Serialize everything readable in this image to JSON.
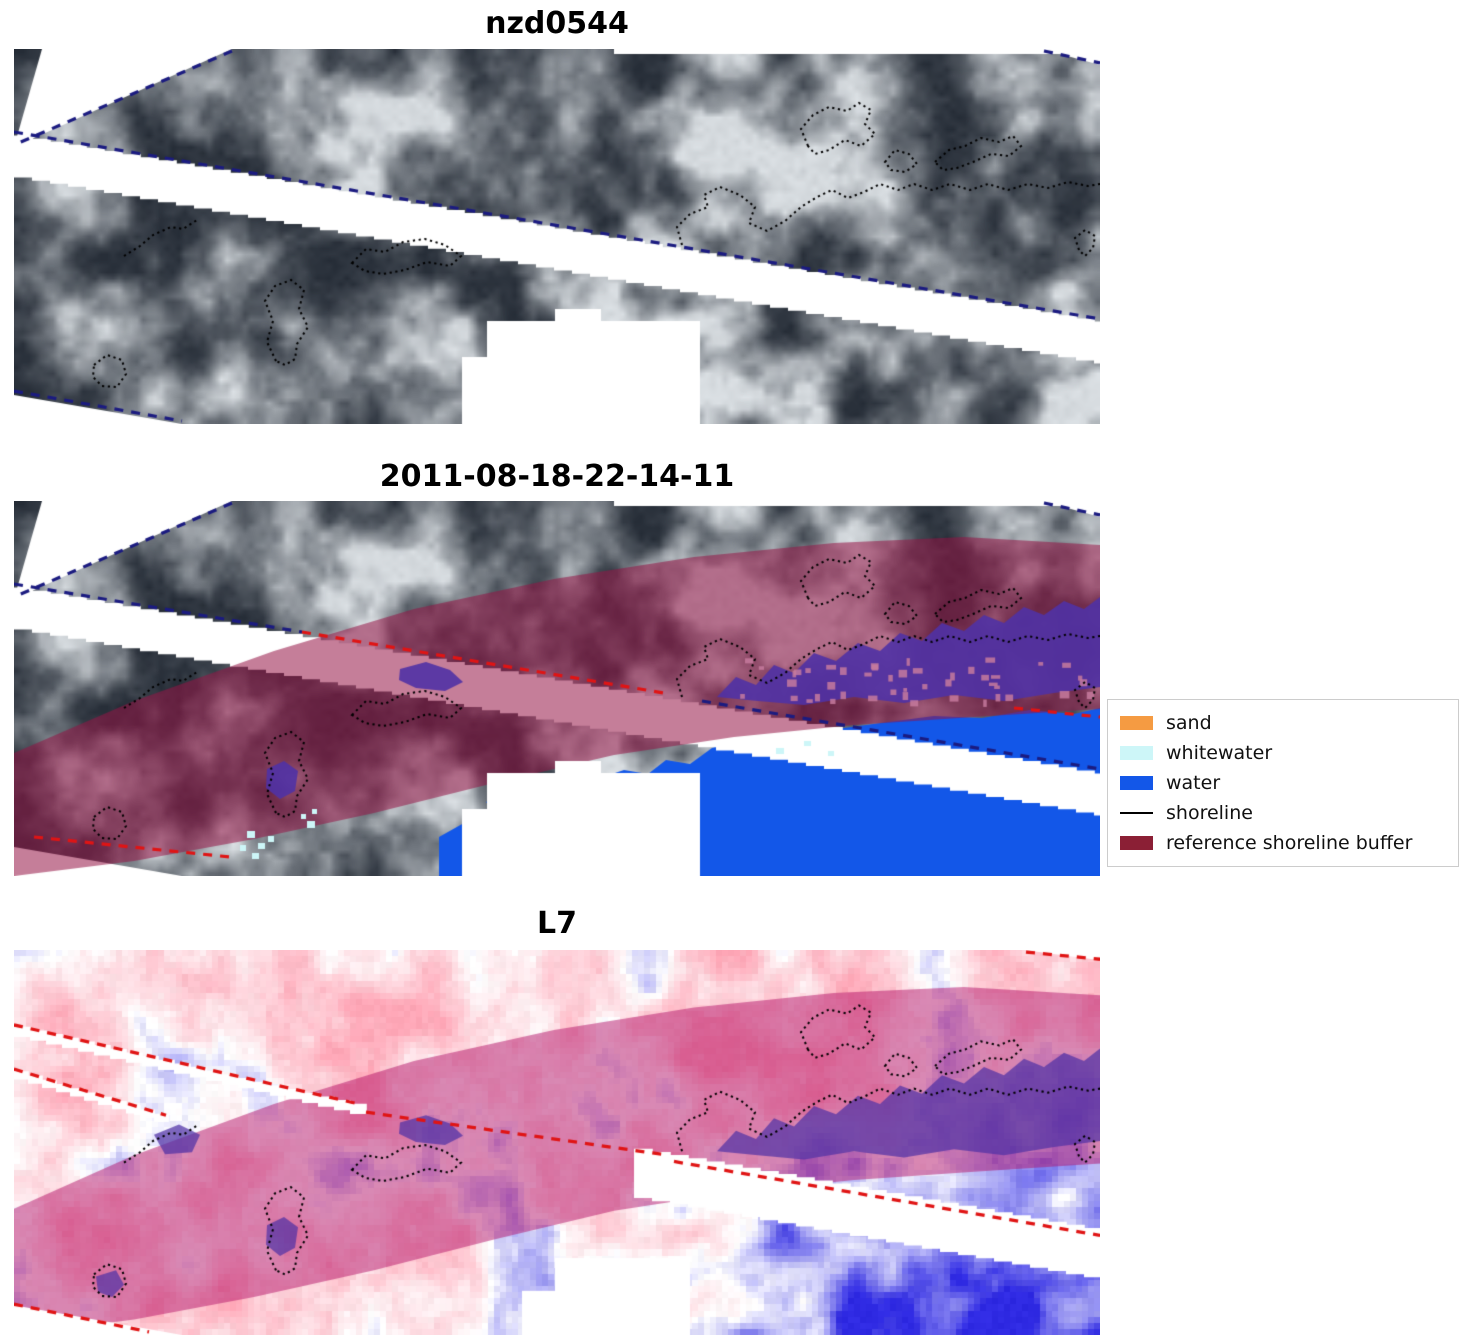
{
  "figure": {
    "panels": [
      {
        "title": "nzd0544",
        "kind": "rgb-satellite-image"
      },
      {
        "title": "2011-08-18-22-14-11",
        "kind": "rgb-satellite-image-with-classification-overlay"
      },
      {
        "title": "L7",
        "kind": "index-image-with-classification-overlay"
      }
    ],
    "legend": {
      "items": [
        {
          "label": "sand",
          "type": "patch",
          "color": "#f59b42"
        },
        {
          "label": "whitewater",
          "type": "patch",
          "color": "#cdf6f8"
        },
        {
          "label": "water",
          "type": "patch",
          "color": "#1357e8"
        },
        {
          "label": "shoreline",
          "type": "line",
          "color": "#000000"
        },
        {
          "label": "reference shoreline buffer",
          "type": "patch",
          "color": "#8b1f35"
        }
      ]
    },
    "colors": {
      "water": "#1357e8",
      "whitewater": "#cdf6f8",
      "buffer_overlay": "rgba(150,20,70,0.55)",
      "buffer_overlay_l7": "rgba(180,20,105,0.5)",
      "purple_water": "rgba(80,50,165,0.9)",
      "purple_water_l7": "rgba(80,50,165,0.72)",
      "shoreline": "#000000",
      "ref_line_navy": "#1b1b80",
      "ref_line_red": "#e01414"
    }
  },
  "chart_data": {
    "type": "heatmap",
    "title": "nzd0544",
    "panel_titles": [
      "nzd0544",
      "2011-08-18-22-14-11",
      "L7"
    ],
    "legend_entries": [
      "sand",
      "whitewater",
      "water",
      "shoreline",
      "reference shoreline buffer"
    ],
    "classes_visible": [
      "water",
      "whitewater",
      "reference shoreline buffer",
      "shoreline"
    ],
    "layout": {
      "rows": 3,
      "legend_position": "right-of-middle-panel",
      "grid": false
    }
  }
}
